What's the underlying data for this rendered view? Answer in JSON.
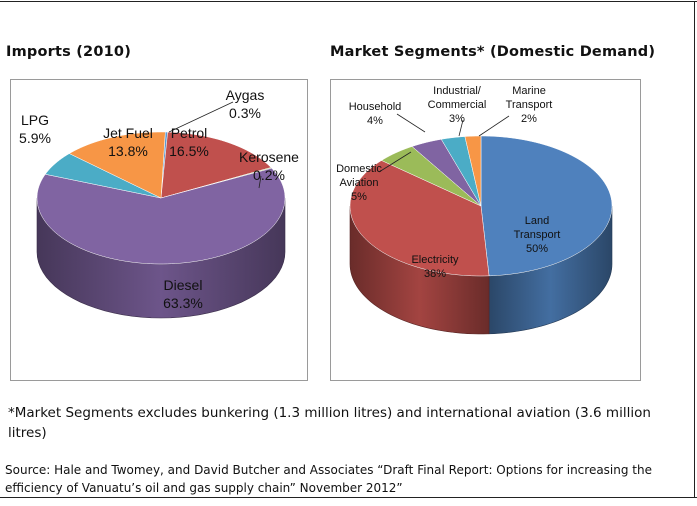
{
  "chart_data": [
    {
      "type": "pie",
      "title": "Imports (2010)",
      "slices": [
        {
          "label": "Aygas",
          "value": 0.3,
          "display": "0.3%",
          "color": "#5b9bd5"
        },
        {
          "label": "Petrol",
          "value": 16.5,
          "display": "16.5%",
          "color": "#c0504d"
        },
        {
          "label": "Kerosene",
          "value": 0.2,
          "display": "0.2%",
          "color": "#9bbb59"
        },
        {
          "label": "Diesel",
          "value": 63.3,
          "display": "63.3%",
          "color": "#8064a2"
        },
        {
          "label": "LPG",
          "value": 5.9,
          "display": "5.9%",
          "color": "#4bacc6"
        },
        {
          "label": "Jet Fuel",
          "value": 13.8,
          "display": "13.8%",
          "color": "#f79646"
        }
      ]
    },
    {
      "type": "pie",
      "title": "Market Segments* (Domestic Demand)",
      "slices": [
        {
          "label": "Land Transport",
          "value": 50,
          "display": "50%",
          "color": "#4f81bd"
        },
        {
          "label": "Electricity",
          "value": 38,
          "display": "38%",
          "color": "#c0504d"
        },
        {
          "label": "Domestic Aviation",
          "value": 5,
          "display": "5%",
          "color": "#9bbb59"
        },
        {
          "label": "Household",
          "value": 4,
          "display": "4%",
          "color": "#8064a2"
        },
        {
          "label": "Industrial/ Commercial",
          "value": 3,
          "display": "3%",
          "color": "#4bacc6"
        },
        {
          "label": "Marine Transport",
          "value": 2,
          "display": "2%",
          "color": "#f79646"
        }
      ]
    }
  ],
  "footnote": "*Market Segments excludes bunkering (1.3 million litres) and international aviation (3.6 million litres)",
  "source": "Source: Hale and Twomey, and David Butcher and Associates “Draft Final Report: Options for increasing the efficiency of Vanuatu’s oil and gas supply chain” November 2012”"
}
